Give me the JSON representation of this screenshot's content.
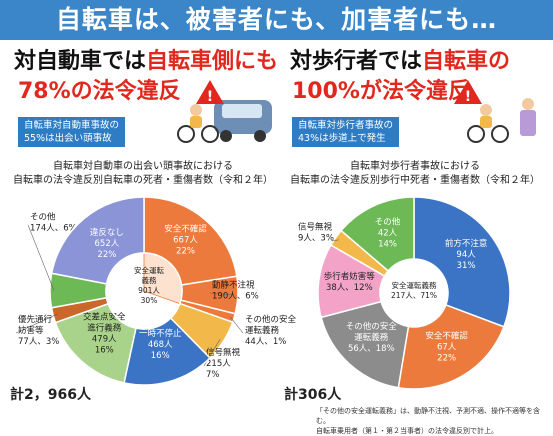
{
  "banner": "自転車は、被害者にも、加害者にも…",
  "left": {
    "headline_line1_black": "対自動車では",
    "headline_line1_red": "自転車側にも",
    "headline_line2_red": "78%の法令違反",
    "info_line1": "自転車対自動車事故の",
    "info_line2": "55%は出会い頭事故",
    "subtitle_line1": "自転車対自動車の出会い頭事故における",
    "subtitle_line2": "自転車の法令違反別自転車の死者・重傷者数（令和２年）",
    "total": "計2，966人"
  },
  "right": {
    "headline_line1_black": "対歩行者では",
    "headline_line1_red": "自転車の",
    "headline_line2_red": "100%が法令違反",
    "info_line1": "自転車対歩行者事故の",
    "info_line2": "43%は歩道上で発生",
    "subtitle_line1": "自転車対歩行者事故における",
    "subtitle_line2": "自転車の法令違反別歩行中死者・重傷者数（令和２年）",
    "total": "計306人"
  },
  "footnote_line1": "「その他の安全運転義務」は、動静不注視、予測不適、操作不適等を含む。",
  "footnote_line2": "自転車乗用者（第１・第２当事者）の法令違反別で計上。",
  "colors": {
    "banner": "#3a86c8",
    "red": "#e0281e",
    "orange": "#ec7a3c",
    "blue": "#3b74c4",
    "green": "#6cb955",
    "lightgreen": "#a9d38b",
    "yellow": "#f2b94a",
    "gray": "#8c8c8c",
    "pink": "#f3a3c8",
    "lightblue": "#5b9bd5",
    "darkorange": "#c9682a"
  },
  "chart_data": [
    {
      "type": "pie",
      "title": "自転車対自動車の出会い頭事故における自転車の法令違反別自転車の死者・重傷者数（令和２年）",
      "total": 2966,
      "center_label": [
        "安全運転",
        "義務",
        "901人",
        "30%"
      ],
      "slices": [
        {
          "name": "安全不確認",
          "value": 667,
          "label": [
            "安全不確認",
            "667人",
            "22%"
          ],
          "color": "#ec7a3c",
          "ring": "outer"
        },
        {
          "name": "動静不注視",
          "value": 190,
          "label": [
            "動静不注視",
            "190人、6%"
          ],
          "color": "#ec7a3c",
          "ring": "outer"
        },
        {
          "name": "その他の安全運転義務",
          "value": 44,
          "label": [
            "その他の安全",
            "運転義務",
            "44人、1%"
          ],
          "color": "#ec7a3c",
          "ring": "outer"
        },
        {
          "name": "信号無視",
          "value": 215,
          "label": [
            "信号無視",
            "215人",
            "7%"
          ],
          "color": "#f2b94a",
          "ring": "outer"
        },
        {
          "name": "一時不停止",
          "value": 468,
          "label": [
            "一時不停止",
            "468人",
            "16%"
          ],
          "color": "#3b74c4",
          "ring": "outer"
        },
        {
          "name": "交差点安全進行義務",
          "value": 479,
          "label": [
            "交差点安全",
            "進行義務",
            "479人",
            "16%"
          ],
          "color": "#a9d38b",
          "ring": "outer"
        },
        {
          "name": "優先通行妨害等",
          "value": 77,
          "label": [
            "優先通行",
            "妨害等",
            "77人、3%"
          ],
          "color": "#c9682a",
          "ring": "outer"
        },
        {
          "name": "その他",
          "value": 174,
          "label": [
            "その他",
            "174人、6%"
          ],
          "color": "#6cb955",
          "ring": "outer"
        },
        {
          "name": "違反なし",
          "value": 652,
          "label": [
            "違反なし",
            "652人",
            "22%"
          ],
          "color": "#8a94d6",
          "ring": "outer"
        }
      ]
    },
    {
      "type": "pie",
      "title": "自転車対歩行者事故における自転車の法令違反別歩行中死者・重傷者数（令和２年）",
      "total": 306,
      "center_label": [
        "安全運転義務",
        "217人、71%"
      ],
      "slices": [
        {
          "name": "前方不注意",
          "value": 94,
          "label": [
            "前方不注意",
            "94人",
            "31%"
          ],
          "color": "#3b74c4"
        },
        {
          "name": "安全不確認",
          "value": 67,
          "label": [
            "安全不確認",
            "67人",
            "22%"
          ],
          "color": "#ec7a3c"
        },
        {
          "name": "その他の安全運転義務",
          "value": 56,
          "label": [
            "その他の安全",
            "運転義務",
            "56人、18%"
          ],
          "color": "#8c8c8c"
        },
        {
          "name": "歩行者妨害等",
          "value": 38,
          "label": [
            "歩行者妨害等",
            "38人、12%"
          ],
          "color": "#f3a3c8"
        },
        {
          "name": "信号無視",
          "value": 9,
          "label": [
            "信号無視",
            "9人、3%"
          ],
          "color": "#f2b94a"
        },
        {
          "name": "その他",
          "value": 42,
          "label": [
            "その他",
            "42人",
            "14%"
          ],
          "color": "#6cb955"
        }
      ]
    }
  ]
}
